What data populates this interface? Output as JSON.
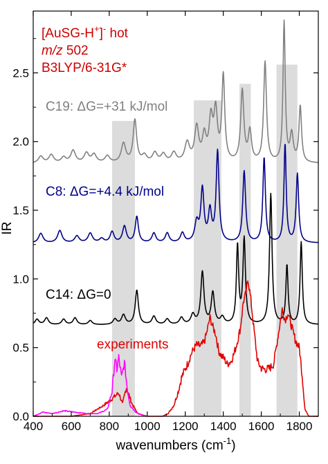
{
  "chart_data": {
    "type": "line",
    "title": "",
    "xlabel_main": "wavenumbers (cm",
    "xlabel_sup": "-1",
    "xlabel_close": ")",
    "ylabel": "IR",
    "xlim": [
      400,
      1900
    ],
    "ylim": [
      0,
      2.95
    ],
    "xticks": [
      400,
      600,
      800,
      1000,
      1200,
      1400,
      1600,
      1800
    ],
    "yticks": [
      0.0,
      0.5,
      1.0,
      1.5,
      2.0,
      2.5
    ],
    "ytick_labels": [
      "0.0",
      "0.5",
      "1.0",
      "1.5",
      "2.0",
      "2.5"
    ],
    "grid": false,
    "highlight_bands": [
      [
        815,
        935
      ],
      [
        1245,
        1390
      ],
      [
        1485,
        1545
      ],
      [
        1680,
        1790
      ]
    ],
    "header_annotations": {
      "line1_base": "[AuSG-H",
      "line1_sup1": "+",
      "line1_mid": "]",
      "line1_sup2": "-",
      "line1_tail": " hot",
      "line2_italic": "m/z",
      "line2_tail": " 502",
      "line3": "B3LYP/6-31G*",
      "color": "#cc0000"
    },
    "series": [
      {
        "name": "C19: ΔG=+31 kJ/mol",
        "color": "#808080",
        "baseline": 1.84,
        "peaks": [
          [
            440,
            0.05,
            15
          ],
          [
            495,
            0.06,
            15
          ],
          [
            560,
            0.04,
            15
          ],
          [
            610,
            0.09,
            15
          ],
          [
            680,
            0.07,
            15
          ],
          [
            720,
            0.06,
            15
          ],
          [
            790,
            0.05,
            15
          ],
          [
            875,
            0.14,
            14
          ],
          [
            935,
            0.31,
            11
          ],
          [
            985,
            0.05,
            15
          ],
          [
            1040,
            0.07,
            15
          ],
          [
            1085,
            0.06,
            15
          ],
          [
            1140,
            0.07,
            15
          ],
          [
            1210,
            0.14,
            15
          ],
          [
            1260,
            0.25,
            13
          ],
          [
            1300,
            0.18,
            12
          ],
          [
            1335,
            0.3,
            12
          ],
          [
            1360,
            0.35,
            11
          ],
          [
            1400,
            0.62,
            9
          ],
          [
            1500,
            0.52,
            10
          ],
          [
            1540,
            0.22,
            10
          ],
          [
            1620,
            0.73,
            9
          ],
          [
            1720,
            1.02,
            7
          ],
          [
            1760,
            0.2,
            10
          ],
          [
            1805,
            0.41,
            8
          ]
        ],
        "min_val": 1.1
      },
      {
        "name": "C8: ΔG=+4.4 kJ/mol",
        "color": "#00008b",
        "baseline": 1.26,
        "peaks": [
          [
            440,
            0.07,
            14
          ],
          [
            540,
            0.09,
            14
          ],
          [
            630,
            0.05,
            14
          ],
          [
            700,
            0.07,
            14
          ],
          [
            760,
            0.03,
            14
          ],
          [
            815,
            0.08,
            12
          ],
          [
            880,
            0.12,
            12
          ],
          [
            945,
            0.19,
            10
          ],
          [
            1035,
            0.07,
            12
          ],
          [
            1105,
            0.07,
            12
          ],
          [
            1185,
            0.07,
            12
          ],
          [
            1260,
            0.14,
            12
          ],
          [
            1290,
            0.38,
            10
          ],
          [
            1330,
            0.22,
            10
          ],
          [
            1370,
            0.66,
            9
          ],
          [
            1510,
            0.52,
            9
          ],
          [
            1615,
            0.62,
            8
          ],
          [
            1725,
            0.72,
            7
          ],
          [
            1790,
            0.5,
            8
          ]
        ],
        "min_val": 0.4
      },
      {
        "name": "C14: ΔG=0",
        "color": "#000000",
        "baseline": 0.665,
        "peaks": [
          [
            420,
            0.04,
            12
          ],
          [
            470,
            0.05,
            12
          ],
          [
            560,
            0.04,
            12
          ],
          [
            620,
            0.05,
            12
          ],
          [
            700,
            0.03,
            12
          ],
          [
            830,
            0.04,
            12
          ],
          [
            875,
            0.07,
            12
          ],
          [
            945,
            0.25,
            10
          ],
          [
            1035,
            0.06,
            12
          ],
          [
            1105,
            0.04,
            12
          ],
          [
            1180,
            0.05,
            12
          ],
          [
            1240,
            0.07,
            12
          ],
          [
            1290,
            0.38,
            10
          ],
          [
            1345,
            0.23,
            10
          ],
          [
            1395,
            0.05,
            12
          ],
          [
            1475,
            0.57,
            7
          ],
          [
            1510,
            0.62,
            8
          ],
          [
            1650,
            0.95,
            8
          ],
          [
            1735,
            0.43,
            7
          ],
          [
            1810,
            0.6,
            7
          ]
        ],
        "min_val": 0.0
      },
      {
        "name": "experiments",
        "color": "#e00000",
        "points": [
          [
            400,
            0.0
          ],
          [
            600,
            0.0
          ],
          [
            700,
            0.02
          ],
          [
            760,
            0.07
          ],
          [
            800,
            0.11
          ],
          [
            850,
            0.17
          ],
          [
            870,
            0.09
          ],
          [
            890,
            0.21
          ],
          [
            920,
            0.09
          ],
          [
            950,
            0.02
          ],
          [
            1000,
            0.0
          ],
          [
            1050,
            0.0
          ],
          [
            1080,
            0.0
          ],
          [
            1110,
            0.02
          ],
          [
            1140,
            0.08
          ],
          [
            1165,
            0.19
          ],
          [
            1180,
            0.28
          ],
          [
            1195,
            0.33
          ],
          [
            1215,
            0.39
          ],
          [
            1230,
            0.45
          ],
          [
            1245,
            0.49
          ],
          [
            1260,
            0.52
          ],
          [
            1280,
            0.51
          ],
          [
            1300,
            0.54
          ],
          [
            1315,
            0.62
          ],
          [
            1330,
            0.72
          ],
          [
            1345,
            0.65
          ],
          [
            1360,
            0.6
          ],
          [
            1375,
            0.48
          ],
          [
            1390,
            0.44
          ],
          [
            1405,
            0.42
          ],
          [
            1420,
            0.38
          ],
          [
            1440,
            0.4
          ],
          [
            1455,
            0.45
          ],
          [
            1470,
            0.52
          ],
          [
            1490,
            0.64
          ],
          [
            1505,
            0.83
          ],
          [
            1520,
            0.9
          ],
          [
            1530,
            1.0
          ],
          [
            1545,
            0.85
          ],
          [
            1560,
            0.65
          ],
          [
            1580,
            0.4
          ],
          [
            1600,
            0.35
          ],
          [
            1620,
            0.34
          ],
          [
            1645,
            0.35
          ],
          [
            1665,
            0.38
          ],
          [
            1690,
            0.6
          ],
          [
            1710,
            0.78
          ],
          [
            1725,
            0.7
          ],
          [
            1740,
            0.75
          ],
          [
            1760,
            0.65
          ],
          [
            1780,
            0.55
          ],
          [
            1800,
            0.5
          ],
          [
            1815,
            0.3
          ],
          [
            1830,
            0.05
          ],
          [
            1850,
            0.0
          ],
          [
            1900,
            0.0
          ]
        ]
      },
      {
        "name": "",
        "color": "#ff00ff",
        "points": [
          [
            400,
            0.0
          ],
          [
            450,
            0.03
          ],
          [
            500,
            0.02
          ],
          [
            560,
            0.04
          ],
          [
            620,
            0.03
          ],
          [
            680,
            0.02
          ],
          [
            740,
            0.02
          ],
          [
            790,
            0.05
          ],
          [
            815,
            0.18
          ],
          [
            830,
            0.42
          ],
          [
            840,
            0.34
          ],
          [
            850,
            0.43
          ],
          [
            865,
            0.28
          ],
          [
            880,
            0.39
          ],
          [
            895,
            0.2
          ],
          [
            910,
            0.08
          ],
          [
            940,
            0.03
          ],
          [
            970,
            0.01
          ],
          [
            1000,
            0.0
          ]
        ]
      }
    ]
  }
}
